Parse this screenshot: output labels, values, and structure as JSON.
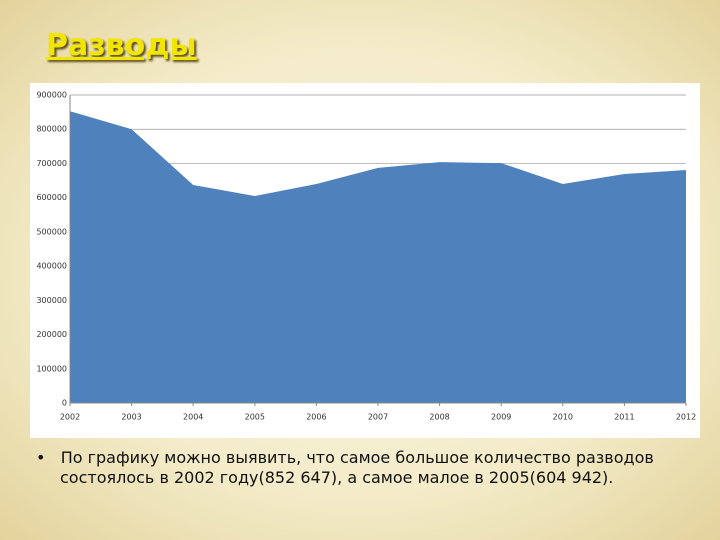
{
  "chart_data": {
    "type": "area",
    "title": "Разводы",
    "x": [
      2002,
      2003,
      2004,
      2005,
      2006,
      2007,
      2008,
      2009,
      2010,
      2011,
      2012
    ],
    "values": [
      852647,
      800000,
      637000,
      604942,
      640000,
      687000,
      704000,
      701000,
      640000,
      669000,
      681000
    ],
    "color": "#4f81bd",
    "xlim": [
      2002,
      2012
    ],
    "xticks": [
      2002,
      2003,
      2004,
      2005,
      2006,
      2007,
      2008,
      2009,
      2010,
      2011,
      2012
    ],
    "ylim": [
      0,
      900000
    ],
    "yticks": [
      0,
      100000,
      200000,
      300000,
      400000,
      500000,
      600000,
      700000,
      800000,
      900000
    ],
    "grid": true
  },
  "bullet": "По графику можно выявить, что самое большое количество разводов состоялось в 2002 году(852 647), а самое малое в 2005(604 942)."
}
